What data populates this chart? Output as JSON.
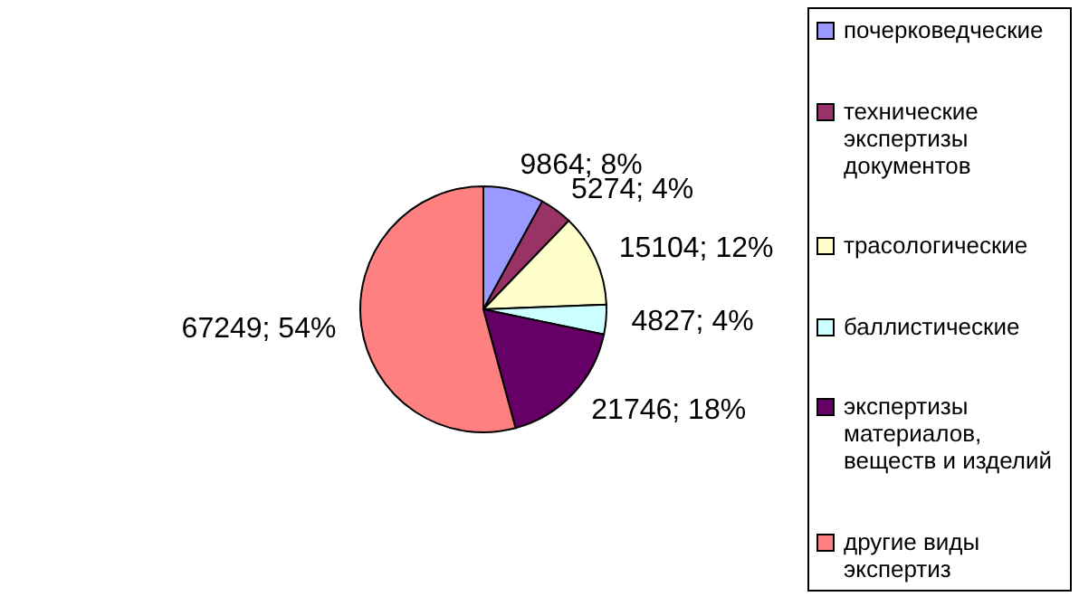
{
  "chart_data": {
    "type": "pie",
    "categories": [
      "почерковедческие",
      "технические экспертизы документов",
      "трасологические",
      "баллистические",
      "экспертизы материалов, веществ и изделий",
      "другие виды экспертиз"
    ],
    "values": [
      9864,
      5274,
      15104,
      4827,
      21746,
      67249
    ],
    "colors": [
      "#9999ff",
      "#993366",
      "#ffffcc",
      "#ccffff",
      "#660066",
      "#ff8080"
    ],
    "value_labels": [
      "9864; 8%",
      "5274; 4%",
      "15104; 12%",
      "4827; 4%",
      "21746; 18%",
      "67249; 54%"
    ],
    "legend": "right"
  }
}
